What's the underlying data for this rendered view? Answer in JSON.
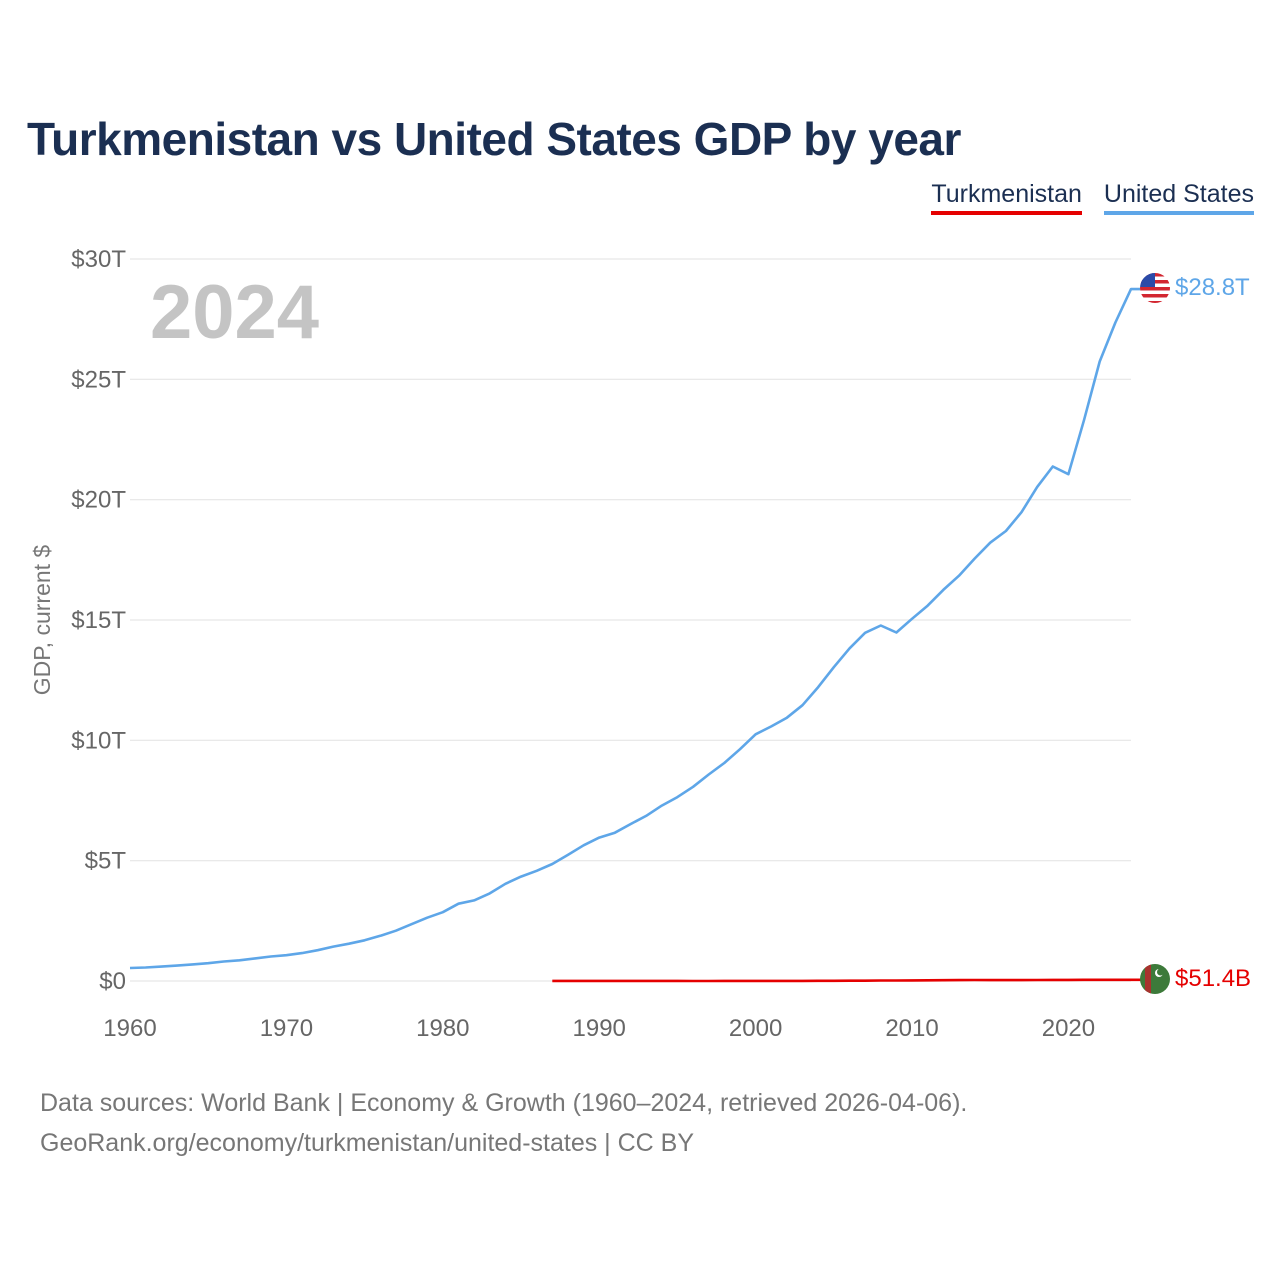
{
  "title": "Turkmenistan vs United States GDP by year",
  "legend": [
    {
      "label": "Turkmenistan",
      "color": "#e50000"
    },
    {
      "label": "United States",
      "color": "#5ea6e8"
    }
  ],
  "year_label": "2024",
  "source_line1": "Data sources: World Bank | Economy & Growth (1960–2024, retrieved 2026-04-06).",
  "source_line2": "GeoRank.org/economy/turkmenistan/united-states | CC BY",
  "chart_data": {
    "type": "line",
    "title": "Turkmenistan vs United States GDP by year",
    "xlabel": "",
    "ylabel": "GDP, current $",
    "xlim": [
      1960,
      2024
    ],
    "ylim": [
      0,
      30
    ],
    "y_unit": "trillion USD",
    "grid": true,
    "legend_position": "top-right",
    "x_ticks": [
      1960,
      1970,
      1980,
      1990,
      2000,
      2010,
      2020
    ],
    "x_tick_labels": [
      "1960",
      "1970",
      "1980",
      "1990",
      "2000",
      "2010",
      "2020"
    ],
    "y_ticks": [
      0,
      5,
      10,
      15,
      20,
      25,
      30
    ],
    "y_tick_labels": [
      "$0",
      "$5T",
      "$10T",
      "$15T",
      "$20T",
      "$25T",
      "$30T"
    ],
    "series": [
      {
        "name": "United States",
        "color": "#5ea6e8",
        "end_label": "$28.8T",
        "flag": "us-flag",
        "x": [
          1960,
          1961,
          1962,
          1963,
          1964,
          1965,
          1966,
          1967,
          1968,
          1969,
          1970,
          1971,
          1972,
          1973,
          1974,
          1975,
          1976,
          1977,
          1978,
          1979,
          1980,
          1981,
          1982,
          1983,
          1984,
          1985,
          1986,
          1987,
          1988,
          1989,
          1990,
          1991,
          1992,
          1993,
          1994,
          1995,
          1996,
          1997,
          1998,
          1999,
          2000,
          2001,
          2002,
          2003,
          2004,
          2005,
          2006,
          2007,
          2008,
          2009,
          2010,
          2011,
          2012,
          2013,
          2014,
          2015,
          2016,
          2017,
          2018,
          2019,
          2020,
          2021,
          2022,
          2023,
          2024
        ],
        "values": [
          0.54,
          0.56,
          0.6,
          0.64,
          0.69,
          0.74,
          0.81,
          0.86,
          0.94,
          1.02,
          1.07,
          1.16,
          1.28,
          1.43,
          1.55,
          1.69,
          1.88,
          2.09,
          2.36,
          2.63,
          2.86,
          3.21,
          3.35,
          3.64,
          4.04,
          4.34,
          4.58,
          4.86,
          5.24,
          5.64,
          5.96,
          6.16,
          6.52,
          6.86,
          7.29,
          7.64,
          8.07,
          8.58,
          9.06,
          9.63,
          10.25,
          10.58,
          10.94,
          11.46,
          12.21,
          13.04,
          13.82,
          14.47,
          14.77,
          14.48,
          15.05,
          15.6,
          16.25,
          16.84,
          17.55,
          18.21,
          18.7,
          19.48,
          20.53,
          21.38,
          21.06,
          23.32,
          25.74,
          27.36,
          28.75
        ]
      },
      {
        "name": "Turkmenistan",
        "color": "#e50000",
        "end_label": "$51.4B",
        "flag": "turkmenistan-flag",
        "x": [
          1987,
          1988,
          1989,
          1990,
          1991,
          1992,
          1993,
          1994,
          1995,
          1996,
          1997,
          1998,
          1999,
          2000,
          2001,
          2002,
          2003,
          2004,
          2005,
          2006,
          2007,
          2008,
          2009,
          2010,
          2011,
          2012,
          2013,
          2014,
          2015,
          2016,
          2017,
          2018,
          2019,
          2020,
          2021,
          2022,
          2023,
          2024
        ],
        "values": [
          0.003,
          0.003,
          0.003,
          0.003,
          0.003,
          0.003,
          0.003,
          0.003,
          0.003,
          0.002,
          0.002,
          0.003,
          0.003,
          0.003,
          0.003,
          0.004,
          0.006,
          0.007,
          0.008,
          0.011,
          0.013,
          0.019,
          0.02,
          0.023,
          0.029,
          0.035,
          0.039,
          0.043,
          0.036,
          0.036,
          0.038,
          0.041,
          0.045,
          0.045,
          0.049,
          0.05,
          0.051,
          0.0514
        ]
      }
    ]
  }
}
